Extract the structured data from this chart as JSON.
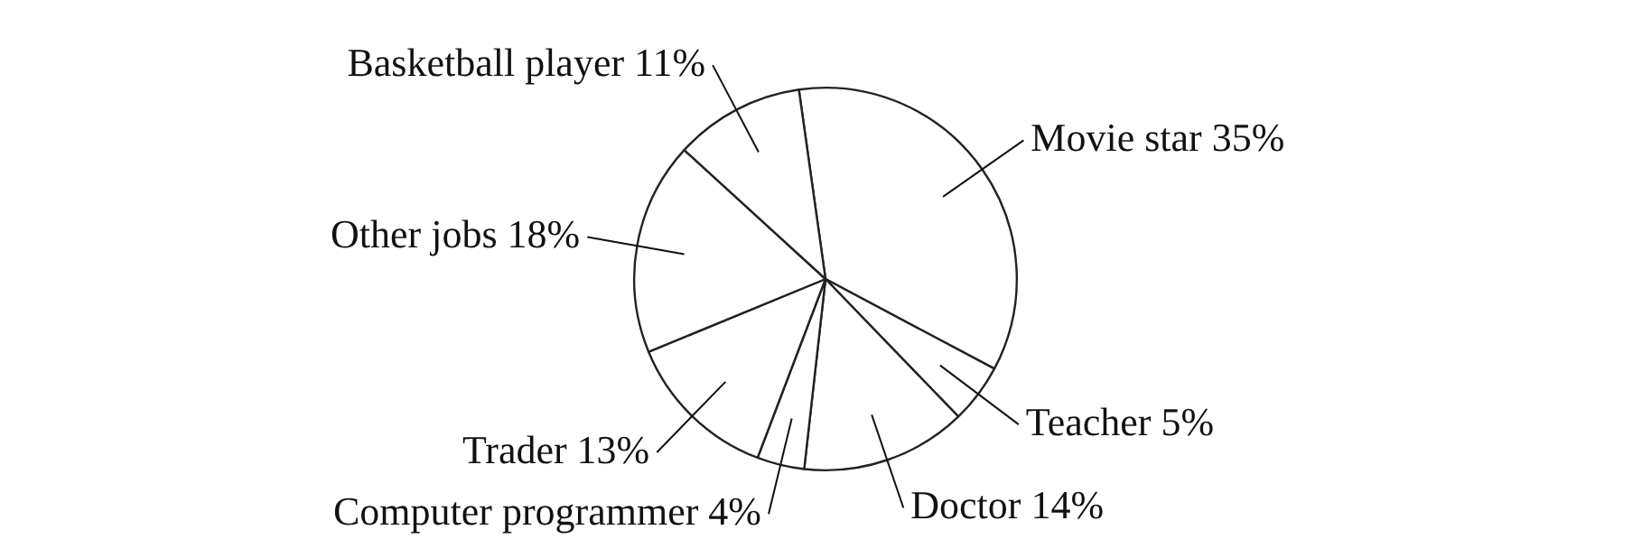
{
  "chart_data": {
    "type": "pie",
    "categories": [
      "Movie star",
      "Teacher",
      "Doctor",
      "Computer programmer",
      "Trader",
      "Other jobs",
      "Basketball player"
    ],
    "values": [
      35,
      5,
      14,
      4,
      13,
      18,
      11
    ],
    "value_labels": [
      "35%",
      "5%",
      "14%",
      "4%",
      "13%",
      "18%",
      "11%"
    ],
    "colors": [
      "#ffffff",
      "#ffffff",
      "#ffffff",
      "#ffffff",
      "#ffffff",
      "#ffffff",
      "#ffffff"
    ],
    "legend": false
  }
}
